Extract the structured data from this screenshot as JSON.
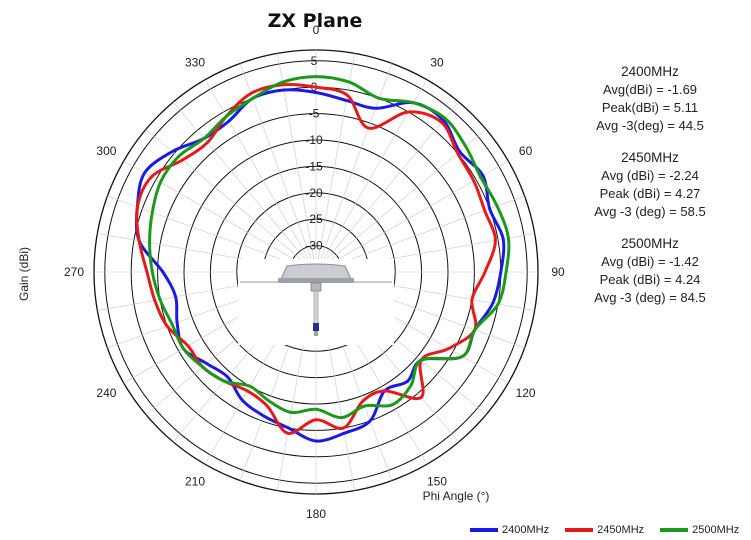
{
  "chart_data": {
    "type": "polar-line",
    "title": "ZX Plane",
    "xlabel": "Phi Angle (°)",
    "ylabel": "Gain (dBi)",
    "angle_ticks": [
      "0",
      "30",
      "60",
      "90",
      "120",
      "150",
      "180",
      "210",
      "240",
      "270",
      "300",
      "330"
    ],
    "radial_ticks": [
      "5",
      "0",
      "-5",
      "-10",
      "-15",
      "-20",
      "-25",
      "-30"
    ],
    "rlim": [
      -35,
      10
    ],
    "grid": true,
    "legend_position": "bottom-right",
    "series": [
      {
        "name": "2400MHz",
        "color": "#1a1ae6",
        "angles": [
          0,
          10,
          20,
          30,
          40,
          50,
          60,
          70,
          80,
          90,
          100,
          110,
          120,
          130,
          140,
          150,
          160,
          170,
          180,
          190,
          200,
          210,
          220,
          230,
          240,
          250,
          260,
          270,
          280,
          290,
          300,
          310,
          320,
          330,
          340,
          350
        ],
        "values": [
          -1,
          -2,
          -2,
          2,
          2.5,
          0.5,
          1.5,
          0,
          1,
          0,
          -1,
          -3,
          -3,
          -9,
          -8,
          -9,
          -5,
          -4,
          -3,
          -5,
          -6,
          -7,
          -9,
          -8,
          -6,
          -7,
          -8,
          -6,
          -1,
          1,
          2.5,
          0.5,
          -2,
          -2,
          0,
          0
        ]
      },
      {
        "name": "2450MHz",
        "color": "#e61a1a",
        "angles": [
          0,
          10,
          20,
          30,
          40,
          50,
          60,
          70,
          80,
          90,
          100,
          110,
          120,
          130,
          140,
          150,
          160,
          170,
          180,
          190,
          200,
          210,
          220,
          230,
          240,
          250,
          260,
          270,
          280,
          290,
          300,
          310,
          320,
          330,
          340,
          350
        ],
        "values": [
          0,
          -1,
          -6,
          0,
          2,
          0,
          -0.5,
          -1,
          -0.5,
          -3,
          -5,
          -3,
          -6,
          -9,
          -4,
          -9,
          -9,
          -5,
          -7,
          -4,
          -8,
          -9,
          -8,
          -7,
          -7,
          -5,
          -4,
          -3,
          -1,
          1,
          1,
          -2,
          -3,
          -1,
          1,
          1
        ]
      },
      {
        "name": "2500MHz",
        "color": "#1a9a1a",
        "angles": [
          0,
          10,
          20,
          30,
          40,
          50,
          60,
          70,
          80,
          90,
          100,
          110,
          120,
          130,
          140,
          150,
          160,
          170,
          180,
          190,
          200,
          210,
          220,
          230,
          240,
          250,
          260,
          270,
          280,
          290,
          300,
          310,
          320,
          330,
          340,
          350
        ],
        "values": [
          2,
          1.5,
          0,
          2,
          3,
          2,
          1,
          1.5,
          2,
          1,
          0,
          -3,
          -3,
          -9,
          -7,
          -6,
          -8,
          -7,
          -9,
          -8,
          -9,
          -10,
          -8,
          -7,
          -6,
          -6,
          -5,
          -4,
          -3,
          -2,
          -1,
          -1,
          -2,
          -1,
          0,
          1.5
        ]
      }
    ]
  },
  "stats": [
    {
      "freq": "2400MHz",
      "lines": [
        "Avg(dBi) = -1.69",
        "Peak(dBi) = 5.11",
        "Avg -3(deg) = 44.5"
      ]
    },
    {
      "freq": "2450MHz",
      "lines": [
        "Avg (dBi) = -2.24",
        "Peak (dBi) = 4.27",
        "Avg -3 (deg) = 58.5"
      ]
    },
    {
      "freq": "2500MHz",
      "lines": [
        "Avg (dBi) = -1.42",
        "Peak (dBi) = 4.24",
        "Avg -3 (deg) = 84.5"
      ]
    }
  ]
}
